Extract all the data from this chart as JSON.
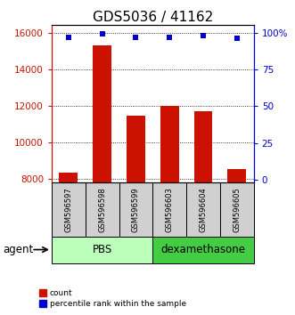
{
  "title": "GDS5036 / 41162",
  "samples": [
    "GSM596597",
    "GSM596598",
    "GSM596599",
    "GSM596603",
    "GSM596604",
    "GSM596605"
  ],
  "counts": [
    8350,
    15300,
    11450,
    11980,
    11680,
    8530
  ],
  "percentiles": [
    97,
    99,
    97,
    97,
    98,
    96
  ],
  "ylim_left": [
    7800,
    16400
  ],
  "ylim_right": [
    -2,
    105
  ],
  "yticks_left": [
    8000,
    10000,
    12000,
    14000,
    16000
  ],
  "yticks_right": [
    0,
    25,
    50,
    75,
    100
  ],
  "bar_color": "#cc1100",
  "dot_color": "#0000cc",
  "bar_width": 0.55,
  "left_axis_color": "#cc1100",
  "right_axis_color": "#0000cc",
  "title_fontsize": 11,
  "tick_fontsize": 7.5,
  "pbs_color": "#bbffbb",
  "dex_color": "#44cc44",
  "sample_box_color": "#d0d0d0",
  "perc_scale_low": 7800,
  "perc_scale_high": 16400,
  "perc_data_low": -2,
  "perc_data_high": 105
}
